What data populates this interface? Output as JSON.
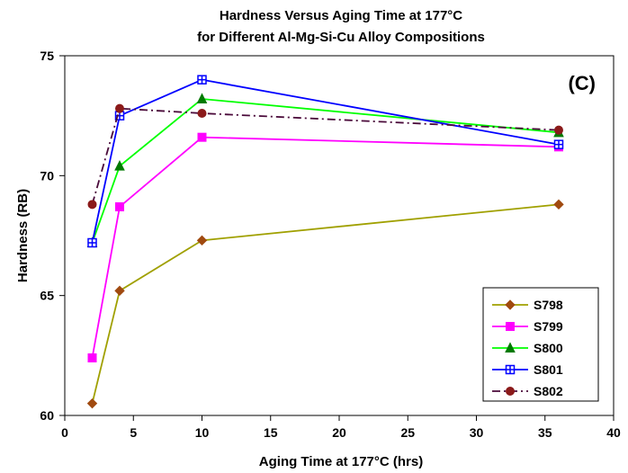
{
  "chart_data": {
    "type": "line",
    "title_line1": "Hardness Versus Aging Time at 177°C",
    "title_line2": "for Different Al-Mg-Si-Cu Alloy Compositions",
    "xlabel": "Aging Time at 177°C  (hrs)",
    "ylabel": "Hardness  (RB)",
    "annotation": "(C)",
    "xlim": [
      0,
      40
    ],
    "ylim": [
      60,
      75
    ],
    "x_ticks": [
      0,
      5,
      10,
      15,
      20,
      25,
      30,
      35,
      40
    ],
    "y_ticks": [
      60,
      65,
      70,
      75
    ],
    "grid": false,
    "legend_position": "bottom-right",
    "x": [
      2,
      4,
      10,
      36
    ],
    "series": [
      {
        "name": "S798",
        "values": [
          60.5,
          65.2,
          67.3,
          68.8
        ],
        "color": "#A0A000",
        "marker": "diamond",
        "marker_color": "#A04A10",
        "dash": "solid"
      },
      {
        "name": "S799",
        "values": [
          62.4,
          68.7,
          71.6,
          71.2
        ],
        "color": "#FF00FF",
        "marker": "square",
        "marker_color": "#FF00FF",
        "dash": "solid"
      },
      {
        "name": "S800",
        "values": [
          67.2,
          70.4,
          73.2,
          71.8
        ],
        "color": "#00FF00",
        "marker": "triangle",
        "marker_color": "#007A00",
        "dash": "solid"
      },
      {
        "name": "S801",
        "values": [
          67.2,
          72.5,
          74.0,
          71.3
        ],
        "color": "#0000FF",
        "marker": "square-cross",
        "marker_color": "#0000FF",
        "dash": "solid"
      },
      {
        "name": "S802",
        "values": [
          68.8,
          72.8,
          72.6,
          71.9
        ],
        "color": "#4A0A3A",
        "marker": "circle",
        "marker_color": "#8B1A1A",
        "dash": "dashdot"
      }
    ]
  }
}
